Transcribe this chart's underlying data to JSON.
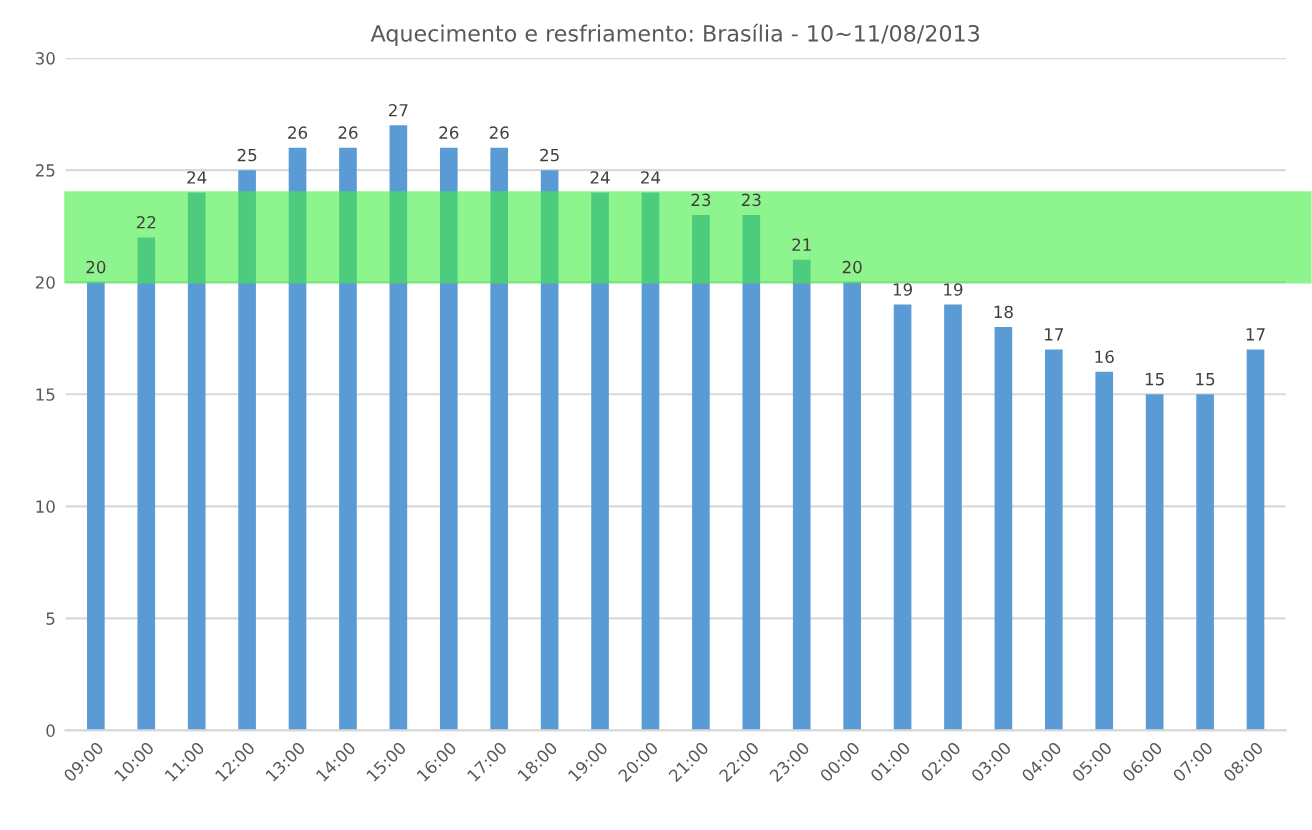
{
  "chart_data": {
    "type": "bar",
    "title": "Aquecimento e resfriamento: Brasília - 10~11/08/2013",
    "categories": [
      "09:00",
      "10:00",
      "11:00",
      "12:00",
      "13:00",
      "14:00",
      "15:00",
      "16:00",
      "17:00",
      "18:00",
      "19:00",
      "20:00",
      "21:00",
      "22:00",
      "23:00",
      "00:00",
      "01:00",
      "02:00",
      "03:00",
      "04:00",
      "05:00",
      "06:00",
      "07:00",
      "08:00"
    ],
    "values": [
      20,
      22,
      24,
      25,
      26,
      26,
      27,
      26,
      26,
      25,
      24,
      24,
      23,
      23,
      21,
      20,
      19,
      19,
      18,
      17,
      16,
      15,
      15,
      17
    ],
    "color": "#5b9bd5",
    "ylim": [
      0,
      30
    ],
    "yticks": [
      0,
      5,
      10,
      15,
      20,
      25,
      30
    ],
    "grid": "y",
    "data_labels": true,
    "bands": [
      {
        "axis": "y",
        "from": 20,
        "to": 24,
        "color": "#44ee44"
      }
    ]
  }
}
